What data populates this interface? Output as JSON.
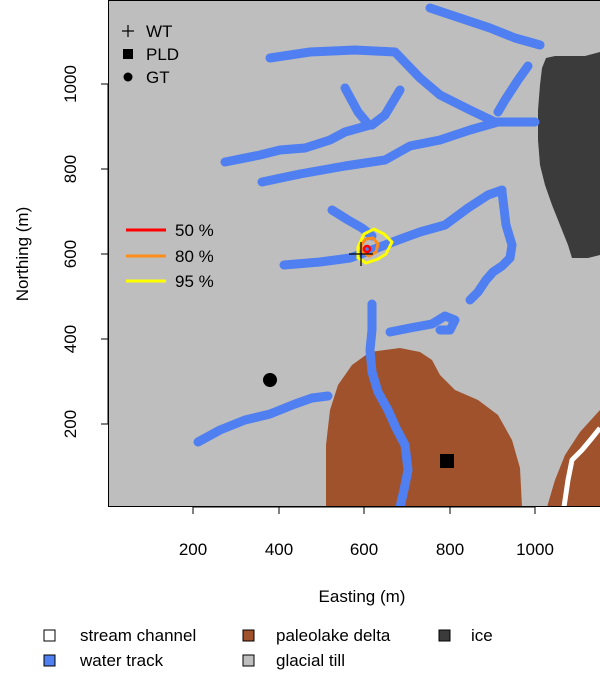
{
  "map": {
    "xlabel": "Easting (m)",
    "ylabel": "Northing (m)",
    "x_ticks": [
      200,
      400,
      600,
      800,
      1000
    ],
    "y_ticks": [
      200,
      400,
      600,
      800,
      1000
    ],
    "x_range": [
      0,
      1160
    ],
    "y_range": [
      0,
      1185
    ],
    "colors": {
      "glacial_till": "#bebebe",
      "paleolake_delta": "#a0522d",
      "ice": "#3b3b3b",
      "water_track": "#4f7ff0",
      "stream_channel": "#ffffff",
      "contour_50": "#ff0000",
      "contour_80": "#ff8c1a",
      "contour_95": "#ffff00"
    }
  },
  "points": {
    "WT": {
      "label": "WT",
      "x": 600,
      "y": 595
    },
    "PLD": {
      "label": "PLD",
      "x": 800,
      "y": 108
    },
    "GT": {
      "label": "GT",
      "x": 385,
      "y": 300
    }
  },
  "point_legend": [
    {
      "symbol": "plus",
      "label": "WT"
    },
    {
      "symbol": "square",
      "label": "PLD"
    },
    {
      "symbol": "circle",
      "label": "GT"
    }
  ],
  "contour_legend": [
    {
      "label": "50 %",
      "color": "#ff0000"
    },
    {
      "label": "80 %",
      "color": "#ff8c1a"
    },
    {
      "label": "95 %",
      "color": "#ffff00"
    }
  ],
  "land_legend": [
    {
      "label": "stream channel",
      "color": "#ffffff"
    },
    {
      "label": "paleolake delta",
      "color": "#a0522d"
    },
    {
      "label": "ice",
      "color": "#3b3b3b"
    },
    {
      "label": "water track",
      "color": "#4f7ff0"
    },
    {
      "label": "glacial till",
      "color": "#bebebe"
    }
  ]
}
